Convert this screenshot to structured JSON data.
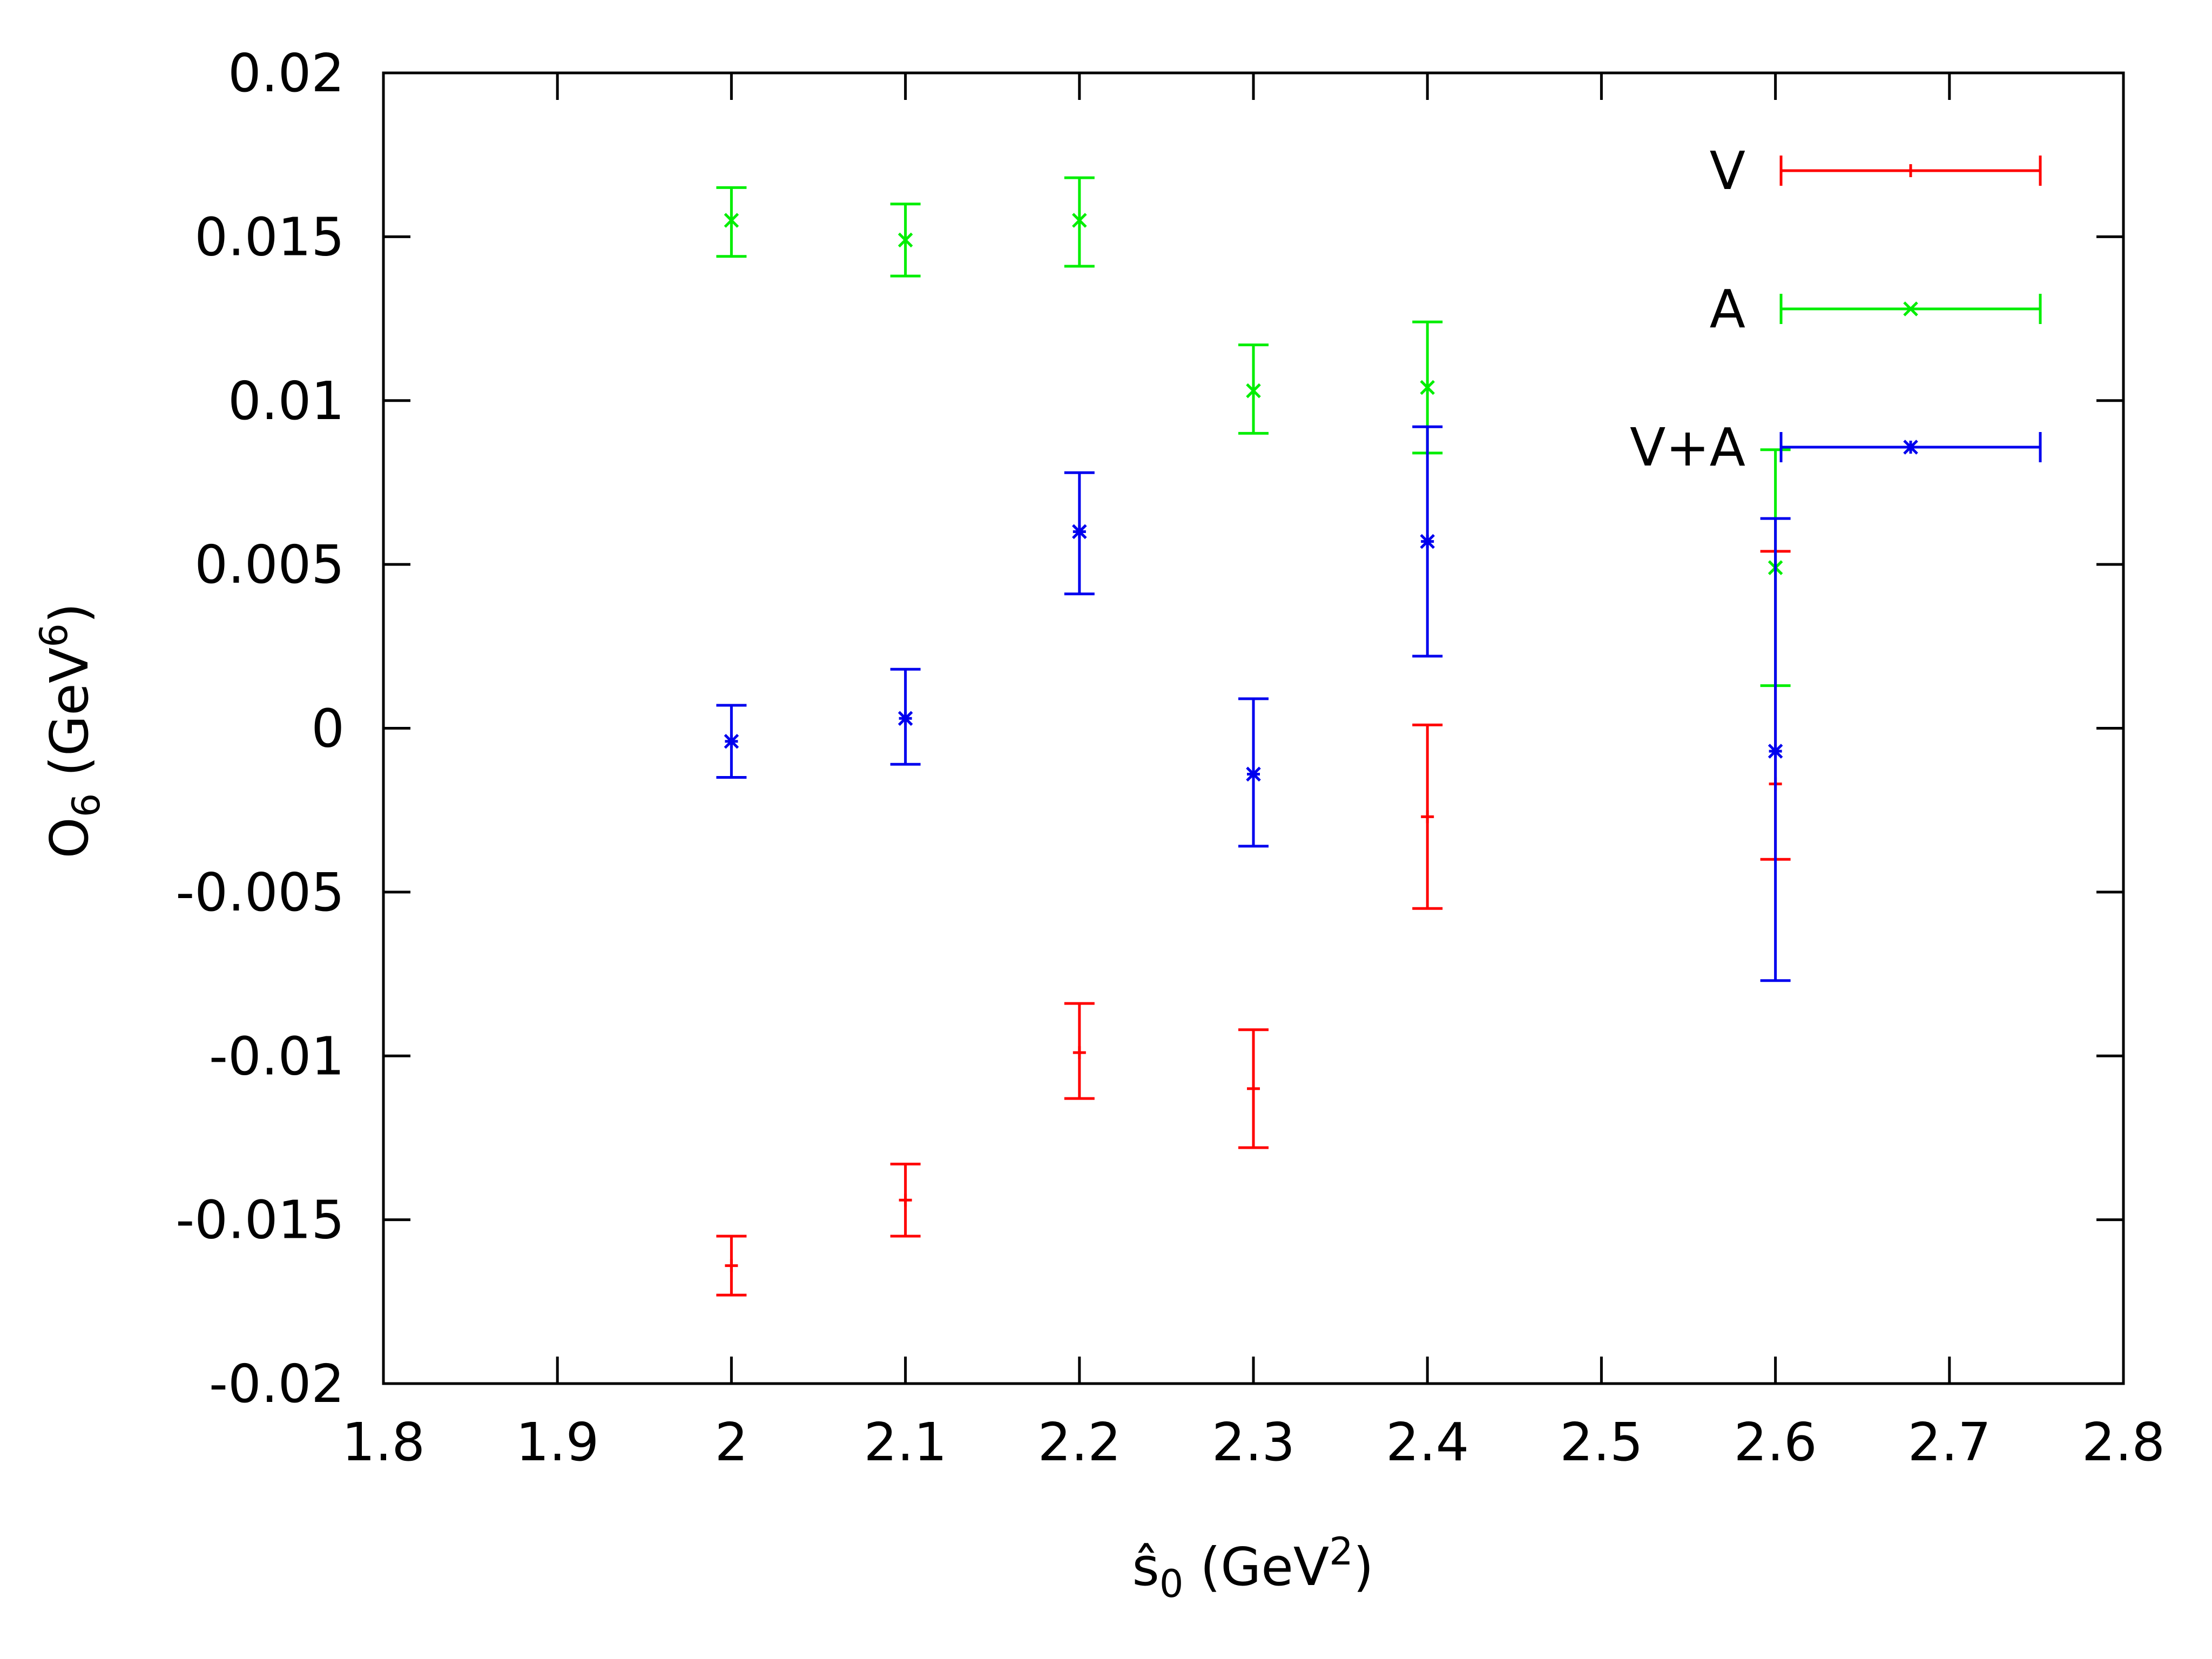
{
  "chart_data": {
    "type": "scatter",
    "errorbars": true,
    "xlabel": "ŝ0 (GeV2)",
    "xlabel_parts": {
      "base": "ŝ",
      "sub": "0",
      "open": " (GeV",
      "sup": "2",
      "close": ")"
    },
    "ylabel": "O6 (GeV6)",
    "ylabel_parts": {
      "base": "O",
      "sub": "6",
      "open": " (GeV",
      "sup": "6",
      "close": ")"
    },
    "xlim": [
      1.8,
      2.8
    ],
    "ylim": [
      -0.02,
      0.02
    ],
    "xticks": [
      1.8,
      1.9,
      2.0,
      2.1,
      2.2,
      2.3,
      2.4,
      2.5,
      2.6,
      2.7,
      2.8
    ],
    "xtick_labels": [
      "1.8",
      "1.9",
      "2",
      "2.1",
      "2.2",
      "2.3",
      "2.4",
      "2.5",
      "2.6",
      "2.7",
      "2.8"
    ],
    "yticks": [
      -0.02,
      -0.015,
      -0.01,
      -0.005,
      0,
      0.005,
      0.01,
      0.015,
      0.02
    ],
    "ytick_labels": [
      "-0.02",
      "-0.015",
      "-0.01",
      "-0.005",
      "0",
      "0.005",
      "0.01",
      "0.015",
      "0.02"
    ],
    "legend_position": "top-right",
    "series": [
      {
        "name": "V",
        "color": "#ff0000",
        "marker": "plus",
        "x": [
          2.0,
          2.1,
          2.2,
          2.3,
          2.4,
          2.6
        ],
        "y": [
          -0.0164,
          -0.0144,
          -0.0099,
          -0.011,
          -0.0027,
          -0.0017
        ],
        "ylow": [
          -0.0173,
          -0.0155,
          -0.0113,
          -0.0128,
          -0.0055,
          -0.004
        ],
        "yhigh": [
          -0.0155,
          -0.0133,
          -0.0084,
          -0.0092,
          0.0001,
          0.0054
        ]
      },
      {
        "name": "A",
        "color": "#00ee00",
        "marker": "cross",
        "x": [
          2.0,
          2.1,
          2.2,
          2.3,
          2.4,
          2.6
        ],
        "y": [
          0.0155,
          0.0149,
          0.0155,
          0.0103,
          0.0104,
          0.0049
        ],
        "ylow": [
          0.0144,
          0.0138,
          0.0141,
          0.009,
          0.0084,
          0.0013
        ],
        "yhigh": [
          0.0165,
          0.016,
          0.0168,
          0.0117,
          0.0124,
          0.0085
        ]
      },
      {
        "name": "V+A",
        "color": "#0000ee",
        "marker": "star",
        "x": [
          2.0,
          2.1,
          2.2,
          2.3,
          2.4,
          2.6
        ],
        "y": [
          -0.0004,
          0.0003,
          0.006,
          -0.0014,
          0.0057,
          -0.0007
        ],
        "ylow": [
          -0.0015,
          -0.0011,
          0.0041,
          -0.0036,
          0.0022,
          -0.0077
        ],
        "yhigh": [
          0.0007,
          0.0018,
          0.0078,
          0.0009,
          0.0092,
          0.0064
        ]
      }
    ]
  }
}
